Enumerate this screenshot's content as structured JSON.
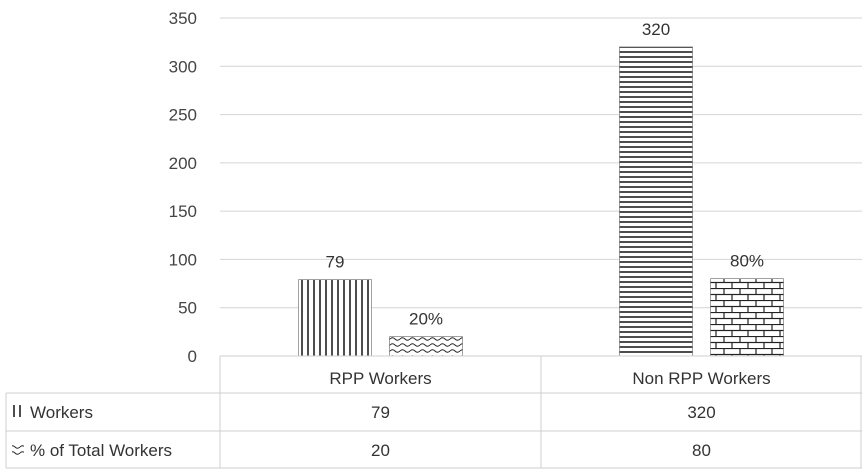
{
  "chart_data": {
    "type": "bar",
    "categories": [
      "RPP Workers",
      "Non RPP Workers"
    ],
    "series": [
      {
        "name": "Workers",
        "values": [
          79,
          320
        ],
        "data_labels": [
          "79",
          "320"
        ],
        "legend_key": "||"
      },
      {
        "name": "% of Total Workers",
        "values": [
          20,
          80
        ],
        "data_labels": [
          "20%",
          "80%"
        ],
        "legend_key": "≈"
      }
    ],
    "y_ticks": [
      "0",
      "50",
      "100",
      "150",
      "200",
      "250",
      "300",
      "350"
    ],
    "ylim": [
      0,
      350
    ],
    "grid": true,
    "legend": "data table below chart",
    "table": {
      "rows": [
        {
          "label": "Workers",
          "cells": [
            "79",
            "320"
          ]
        },
        {
          "label": "% of Total Workers",
          "cells": [
            "20",
            "80"
          ]
        }
      ]
    }
  }
}
